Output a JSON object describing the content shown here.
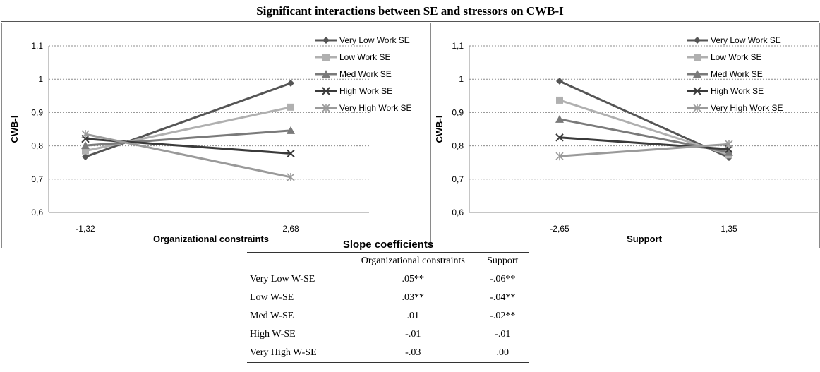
{
  "figure_title": "Significant interactions between SE and stressors on CWB-I",
  "chart_data": [
    {
      "type": "line",
      "xlabel": "Organizational constraints",
      "ylabel": "CWB-I",
      "x": [
        "-1,32",
        "2,68"
      ],
      "ylim": [
        0.6,
        1.1
      ],
      "yticks": [
        "0,6",
        "0,7",
        "0,8",
        "0,9",
        "1",
        "1,1"
      ],
      "grid": true,
      "legend_position": "top-right",
      "series": [
        {
          "name": "Very Low Work SE",
          "values": [
            0.767,
            0.988
          ],
          "color": "#555555",
          "marker": "diamond"
        },
        {
          "name": "Low Work SE",
          "values": [
            0.785,
            0.916
          ],
          "color": "#b0b0b0",
          "marker": "square"
        },
        {
          "name": "Med Work SE",
          "values": [
            0.801,
            0.846
          ],
          "color": "#7a7a7a",
          "marker": "triangle"
        },
        {
          "name": "High Work SE",
          "values": [
            0.821,
            0.777
          ],
          "color": "#3a3a3a",
          "marker": "x"
        },
        {
          "name": "Very High Work SE",
          "values": [
            0.835,
            0.706
          ],
          "color": "#9a9a9a",
          "marker": "star"
        }
      ]
    },
    {
      "type": "line",
      "xlabel": "Support",
      "ylabel": "CWB-I",
      "x": [
        "-2,65",
        "1,35"
      ],
      "ylim": [
        0.6,
        1.1
      ],
      "yticks": [
        "0,6",
        "0,7",
        "0,8",
        "0,9",
        "1",
        "1,1"
      ],
      "grid": true,
      "legend_position": "top-right",
      "series": [
        {
          "name": "Very Low Work SE",
          "values": [
            0.994,
            0.765
          ],
          "color": "#555555",
          "marker": "diamond"
        },
        {
          "name": "Low Work SE",
          "values": [
            0.937,
            0.773
          ],
          "color": "#b0b0b0",
          "marker": "square"
        },
        {
          "name": "Med Work SE",
          "values": [
            0.88,
            0.781
          ],
          "color": "#7a7a7a",
          "marker": "triangle"
        },
        {
          "name": "High Work SE",
          "values": [
            0.825,
            0.79
          ],
          "color": "#3a3a3a",
          "marker": "x"
        },
        {
          "name": "Very High Work SE",
          "values": [
            0.769,
            0.805
          ],
          "color": "#9a9a9a",
          "marker": "star"
        }
      ]
    }
  ],
  "table": {
    "title": "Slope coefficients",
    "headers": [
      "",
      "Organizational constraints",
      "Support"
    ],
    "rows": [
      [
        "Very Low W-SE",
        ".05**",
        "-.06**"
      ],
      [
        "Low W-SE",
        ".03**",
        "-.04**"
      ],
      [
        "Med W-SE",
        ".01",
        "-.02**"
      ],
      [
        "High W-SE",
        "-.01",
        "-.01"
      ],
      [
        "Very High W-SE",
        "-.03",
        ".00"
      ]
    ]
  }
}
